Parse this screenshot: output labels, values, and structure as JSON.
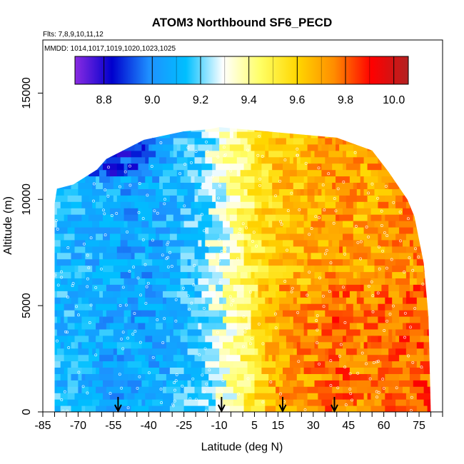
{
  "chart_data": {
    "type": "heatmap",
    "title": "ATOM3 Northbound SF6_PECD",
    "flights_label": "Flts: 7,8,9,10,11,12",
    "mmdd_label": "MMDD: 1014,1017,1019,1020,1023,1025",
    "xlabel": "Latitude (deg N)",
    "ylabel": "Altitude (m)",
    "xlim": [
      -85,
      85
    ],
    "ylim": [
      0,
      17500
    ],
    "x_ticks": [
      -85,
      -70,
      -55,
      -40,
      -25,
      -10,
      5,
      15,
      30,
      45,
      60,
      75
    ],
    "x_tick_labels": [
      "-85",
      "-70",
      "-55",
      "-40",
      "-25",
      "-10",
      "5",
      "15",
      "30",
      "45",
      "60",
      "75"
    ],
    "y_ticks": [
      0,
      5000,
      10000,
      15000
    ],
    "y_tick_labels": [
      "0",
      "5000",
      "10000",
      "15000"
    ],
    "colorbar": {
      "min": 8.68,
      "max": 10.06,
      "ticks": [
        8.8,
        9.0,
        9.2,
        9.4,
        9.6,
        9.8,
        10.0
      ],
      "tick_labels": [
        "8.8",
        "9.0",
        "9.2",
        "9.4",
        "9.6",
        "9.8",
        "10.0"
      ],
      "colors": [
        "#8a2be2",
        "#0000cd",
        "#1e90ff",
        "#00bfff",
        "#ffffff",
        "#ffff66",
        "#ffd700",
        "#ff8c00",
        "#ff0000",
        "#b22222"
      ]
    },
    "domain_outline": [
      [
        -80,
        0
      ],
      [
        -80,
        9800
      ],
      [
        -79,
        10500
      ],
      [
        -72,
        10700
      ],
      [
        -62,
        11400
      ],
      [
        -58,
        11900
      ],
      [
        -42,
        12800
      ],
      [
        -25,
        13200
      ],
      [
        -14,
        13300
      ],
      [
        -10,
        13400
      ],
      [
        10,
        13200
      ],
      [
        40,
        12900
      ],
      [
        55,
        12300
      ],
      [
        62,
        11300
      ],
      [
        70,
        10000
      ],
      [
        73,
        9200
      ],
      [
        77,
        7000
      ],
      [
        79,
        4500
      ],
      [
        80,
        0
      ]
    ],
    "profile_lats": [
      -80,
      -70,
      -60,
      -50,
      -40,
      -30,
      -20,
      -12,
      -5,
      0,
      5,
      10,
      15,
      22,
      30,
      40,
      50,
      60,
      70,
      80
    ],
    "profile_values": [
      9.12,
      9.1,
      9.08,
      9.06,
      9.06,
      9.1,
      9.16,
      9.26,
      9.36,
      9.44,
      9.52,
      9.6,
      9.66,
      9.68,
      9.7,
      9.76,
      9.72,
      9.74,
      9.76,
      9.78
    ],
    "arrows_lat": [
      -53,
      -9,
      17,
      39
    ]
  }
}
